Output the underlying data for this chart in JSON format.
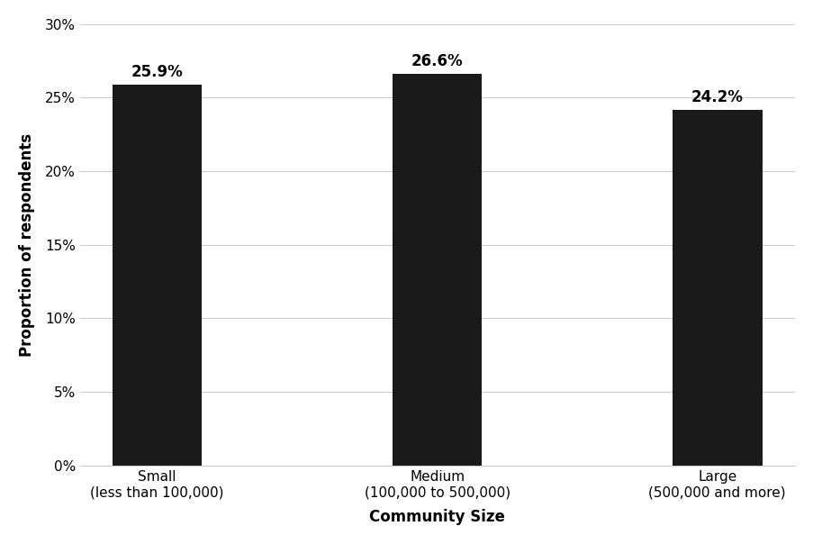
{
  "categories": [
    "Small\n(less than 100,000)",
    "Medium\n(100,000 to 500,000)",
    "Large\n(500,000 and more)"
  ],
  "values": [
    25.9,
    26.6,
    24.2
  ],
  "labels": [
    "25.9%",
    "26.6%",
    "24.2%"
  ],
  "bar_color": "#1a1a1a",
  "xlabel": "Community Size",
  "ylabel": "Proportion of respondents",
  "ylim": [
    0,
    30
  ],
  "yticks": [
    0,
    5,
    10,
    15,
    20,
    25,
    30
  ],
  "ytick_labels": [
    "0%",
    "5%",
    "10%",
    "15%",
    "20%",
    "25%",
    "30%"
  ],
  "background_color": "#ffffff",
  "grid_color": "#cccccc",
  "bar_width": 0.32,
  "label_fontsize": 12,
  "axis_label_fontsize": 12,
  "tick_fontsize": 11
}
